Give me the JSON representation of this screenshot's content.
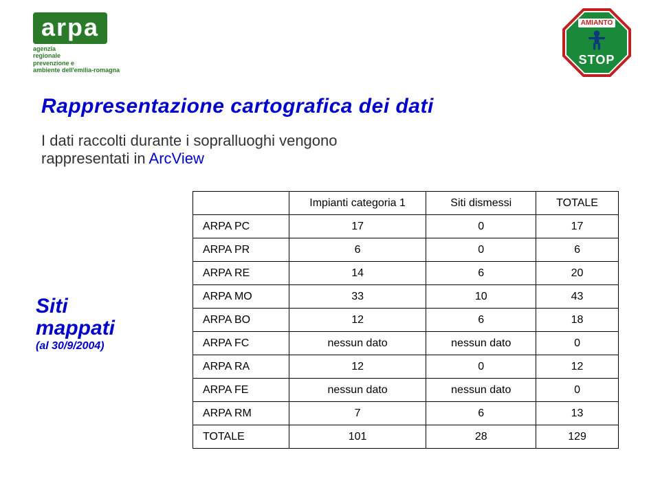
{
  "logos": {
    "arpa_text": "arpa",
    "arpa_sub1": "agenzia",
    "arpa_sub2": "regionale",
    "arpa_sub3": "prevenzione e",
    "arpa_sub4": "ambiente dell'emilia-romagna",
    "stop_top": "AMIANTO",
    "stop_bottom": "STOP"
  },
  "title": "Rappresentazione cartografica dei dati",
  "subtitle_a": "I dati raccolti durante i sopralluoghi vengono",
  "subtitle_b": "rappresentati in ",
  "subtitle_c": "ArcView",
  "side": {
    "line1": "Siti",
    "line2": "mappati",
    "line3": "(al 30/9/2004)"
  },
  "table": {
    "headers": [
      "Impianti categoria 1",
      "Siti dismessi",
      "TOTALE"
    ],
    "rows": [
      {
        "label": "ARPA  PC",
        "v": [
          "17",
          "0",
          "17"
        ]
      },
      {
        "label": "ARPA  PR",
        "v": [
          "6",
          "0",
          "6"
        ]
      },
      {
        "label": "ARPA  RE",
        "v": [
          "14",
          "6",
          "20"
        ]
      },
      {
        "label": "ARPA  MO",
        "v": [
          "33",
          "10",
          "43"
        ]
      },
      {
        "label": "ARPA  BO",
        "v": [
          "12",
          "6",
          "18"
        ]
      },
      {
        "label": "ARPA  FC",
        "v": [
          "nessun dato",
          "nessun dato",
          "0"
        ]
      },
      {
        "label": "ARPA  RA",
        "v": [
          "12",
          "0",
          "12"
        ]
      },
      {
        "label": "ARPA  FE",
        "v": [
          "nessun dato",
          "nessun dato",
          "0"
        ]
      },
      {
        "label": "ARPA  RM",
        "v": [
          "7",
          "6",
          "13"
        ]
      },
      {
        "label": "TOTALE",
        "v": [
          "101",
          "28",
          "129"
        ]
      }
    ],
    "colors": {
      "border": "#000000",
      "text": "#000000",
      "accent_blue": "#0000cc"
    }
  }
}
